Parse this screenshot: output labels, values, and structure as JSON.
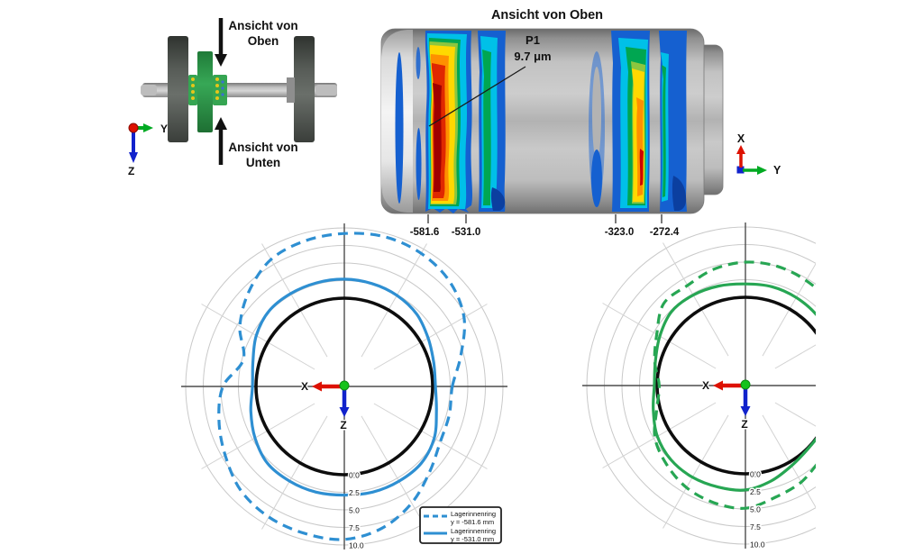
{
  "page": {
    "background": "#ffffff"
  },
  "colors": {
    "curve_blue": "#2e8fd2",
    "curve_green": "#27a653",
    "reference_black": "#0d0d0d",
    "axis_x_red": "#dd1100",
    "axis_y_green": "#00aa22",
    "axis_z_blue": "#1122cc",
    "grid_ring": "#c9c9c9",
    "grid_spoke": "#d2d2d2",
    "grid_axis": "#4d4d4d",
    "contour_scale": [
      "#a00000",
      "#cc0000",
      "#f04000",
      "#ff9000",
      "#ffd800",
      "#8cc63f",
      "#00a651",
      "#00c0e8",
      "#2e8fd2",
      "#1560d0"
    ]
  },
  "wheelset_inset": {
    "view_top_label": [
      "Ansicht von",
      "Oben"
    ],
    "view_bottom_label": [
      "Ansicht von",
      "Unten"
    ],
    "axis_labels": {
      "y": "Y",
      "z": "Z"
    }
  },
  "cylinder_view": {
    "title": "Ansicht von Oben",
    "annotation_point": "P1",
    "annotation_value": "9.7 μm",
    "position_labels": [
      "-581.6",
      "-531.0",
      "-323.0",
      "-272.4"
    ],
    "axis_labels": {
      "x": "X",
      "y": "Y"
    }
  },
  "chart_data": [
    {
      "type": "line",
      "subtype": "polar-deviation",
      "position": "bottom-left",
      "angle_convention": "degrees CCW from screen-right; value = radial deviation in μm from reference circle",
      "angle_step_deg": 15,
      "radial_ticks": [
        0.0,
        2.5,
        5.0,
        7.5,
        10.0
      ],
      "radial_tick_labels": [
        "0.0",
        "2.5",
        "5.0",
        "7.5",
        "10.0"
      ],
      "radial_range": [
        0,
        10
      ],
      "unit": "μm",
      "axis_labels": {
        "x": "X",
        "z": "Z"
      },
      "grid": {
        "rings": true,
        "spokes_every_deg": 30
      },
      "series": [
        {
          "name": "reference-circle",
          "style": "solid",
          "color_key": "reference_black",
          "width": 3.6,
          "constant": 0
        },
        {
          "name": "Lagerinnenring y = -581.6 mm",
          "style": "dashed",
          "color_key": "curve_blue",
          "width": 3.2,
          "values": [
            2.8,
            4.6,
            7.1,
            8.6,
            9.3,
            9.5,
            9.2,
            8.9,
            8.3,
            6.6,
            4.6,
            2.3,
            4.7,
            5.9,
            7.0,
            8.3,
            8.9,
            9.1,
            9.2,
            8.3,
            6.6,
            4.6,
            3.2,
            2.9
          ]
        },
        {
          "name": "Lagerinnenring y = -531.0 mm",
          "style": "solid",
          "color_key": "curve_blue",
          "width": 3.2,
          "values": [
            0.4,
            0.6,
            1.2,
            2.0,
            2.4,
            2.6,
            2.7,
            2.7,
            2.7,
            2.6,
            1.9,
            0.9,
            0.5,
            1.2,
            2.1,
            2.9,
            3.0,
            3.0,
            2.9,
            3.0,
            3.0,
            2.9,
            2.2,
            1.0
          ]
        }
      ],
      "legend": {
        "visible": true,
        "position": "bottom-right",
        "entries": [
          {
            "style": "dashed",
            "lines": [
              "Lagerinnenring",
              "y = -581.6 mm"
            ]
          },
          {
            "style": "solid",
            "lines": [
              "Lagerinnenring",
              "y = -531.0 mm"
            ]
          }
        ]
      }
    },
    {
      "type": "line",
      "subtype": "polar-deviation",
      "position": "bottom-right",
      "clipped_right": true,
      "angle_convention": "degrees CCW from screen-right; value = radial deviation in μm from reference circle",
      "angle_step_deg": 15,
      "radial_ticks": [
        0.0,
        2.5,
        5.0,
        7.5,
        10.0
      ],
      "radial_tick_labels": [
        "0.0",
        "2.5",
        "5.0",
        "7.5",
        "10.0"
      ],
      "radial_range": [
        0,
        10
      ],
      "unit": "μm",
      "axis_labels": {
        "x": "X",
        "z": "Z"
      },
      "grid": {
        "rings": true,
        "spokes_every_deg": 30
      },
      "series": [
        {
          "name": "reference-circle",
          "style": "solid",
          "color_key": "reference_black",
          "width": 3.6,
          "constant": 0
        },
        {
          "name": "dashed-ring",
          "style": "dashed",
          "color_key": "curve_green",
          "width": 3.2,
          "values": [
            4.0,
            3.8,
            3.6,
            4.3,
            4.7,
            5.0,
            5.0,
            4.6,
            3.9,
            3.9,
            2.0,
            0.8,
            -0.3,
            0.5,
            2.3,
            3.3,
            4.2,
            4.7,
            4.9,
            3.9,
            3.3,
            2.5,
            3.0,
            3.6
          ]
        },
        {
          "name": "solid-ring",
          "style": "solid",
          "color_key": "curve_green",
          "width": 3.2,
          "values": [
            0.5,
            0.9,
            1.4,
            1.7,
            1.9,
            2.0,
            1.9,
            2.1,
            2.3,
            2.3,
            1.5,
            0.7,
            0.4,
            1.0,
            1.9,
            2.4,
            2.5,
            2.4,
            2.3,
            1.5,
            0.6,
            0.1,
            0.1,
            0.3
          ]
        }
      ],
      "legend": {
        "visible": false,
        "entries": []
      }
    }
  ]
}
